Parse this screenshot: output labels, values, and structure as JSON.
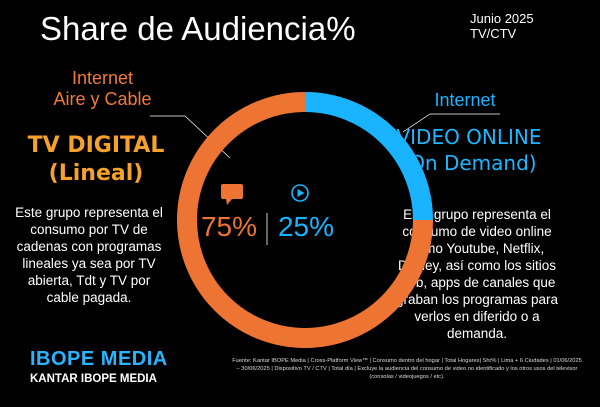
{
  "header": {
    "title": "Share de Audiencia%",
    "period_line1": "Junio 2025",
    "period_line2": "TV/CTV"
  },
  "left_segment": {
    "top_line1": "Internet",
    "top_line2": "Aire y Cable",
    "heading_line1": "TV DIGITAL",
    "heading_line2": "(Lineal)",
    "description": "Este grupo representa el consumo por TV de cadenas con programas lineales ya sea por TV abierta, Tdt y TV por cable pagada.",
    "icon": "tv-icon"
  },
  "right_segment": {
    "top_line": "Internet",
    "heading_line1": "VIDEO ONLINE",
    "heading_line2": "(On Demand)",
    "description": "Este grupo representa el consumo de video online como Youtube, Netflix, Disney, así como los sitios web, apps de canales que graban los programas para verlos en diferido o a demanda.",
    "icon": "play-icon"
  },
  "chart_data": {
    "type": "pie",
    "categories": [
      "TV DIGITAL (Lineal)",
      "VIDEO ONLINE (On Demand)"
    ],
    "values": [
      75,
      25
    ],
    "value_labels": [
      "75%",
      "25%"
    ],
    "colors": [
      "#ee7434",
      "#1ab3ff"
    ],
    "track_color": "#1b1b1b"
  },
  "footer": {
    "brand": "IBOPE MEDIA",
    "sub_brand": "KANTAR IBOPE MEDIA",
    "source": "Fuente: Kantar IBOPE Media | Cross-Platform View™ | Consumo dentro del hogar | Total Hogares| Shr% | Lima + 6 Ciudades | 01/06/2025 – 30/06/2025 | Dispositivo TV / CTV | Total día | Excluye la audiencia del consumo de video no identificado y los otros usos del televisor (consolas / videojuegos / etc)."
  },
  "colors": {
    "background": "#000000",
    "orange": "#ee7434",
    "amber": "#f6a12c",
    "blue": "#1ab3ff"
  }
}
